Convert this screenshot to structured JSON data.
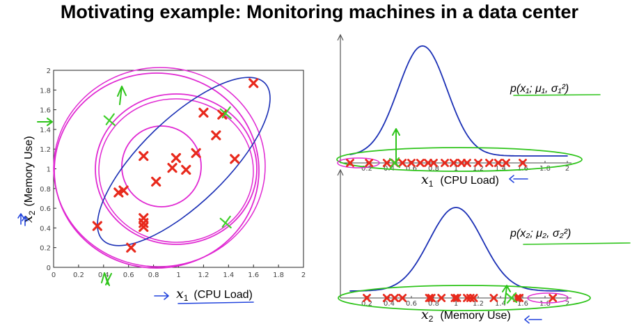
{
  "slide": {
    "title": "Motivating example: Monitoring machines in a data center"
  },
  "annotations": {
    "p1": "p(x₁; μ₁, σ₁²)",
    "p2": "p(x₂; μ₂, σ₂²)"
  },
  "colors": {
    "cross": "#e8291c",
    "anomaly": "#3fcf2a",
    "contour": "#e028d2",
    "curve": "#1a2fb5",
    "green_ink": "#2ec41a",
    "blue_ink": "#2244dd"
  },
  "chart_data": [
    {
      "type": "scatter",
      "xlabel_var": "x",
      "xlabel_sub": "1",
      "xlabel_text": "(CPU Load)",
      "ylabel_var": "x",
      "ylabel_sub": "2",
      "ylabel_text": "(Memory Use)",
      "xlim": [
        0,
        2
      ],
      "ylim": [
        0,
        2
      ],
      "xticks": [
        "0",
        "0.2",
        "0.4",
        "0.6",
        "0.8",
        "1",
        "1.2",
        "1.4",
        "1.6",
        "1.8",
        "2"
      ],
      "yticks": [
        "0",
        "0.2",
        "0.4",
        "0.6",
        "0.8",
        "1",
        "1.2",
        "1.4",
        "1.6",
        "1.8",
        "2"
      ],
      "points": [
        [
          0.35,
          0.42
        ],
        [
          0.52,
          0.76
        ],
        [
          0.56,
          0.78
        ],
        [
          0.62,
          0.2
        ],
        [
          0.72,
          0.5
        ],
        [
          0.72,
          0.45
        ],
        [
          0.72,
          0.41
        ],
        [
          0.82,
          0.87
        ],
        [
          0.72,
          1.13
        ],
        [
          0.95,
          1.01
        ],
        [
          0.98,
          1.11
        ],
        [
          1.06,
          0.99
        ],
        [
          1.14,
          1.16
        ],
        [
          1.2,
          1.57
        ],
        [
          1.3,
          1.34
        ],
        [
          1.35,
          1.55
        ],
        [
          1.45,
          1.1
        ],
        [
          1.6,
          1.87
        ]
      ],
      "anomalies": [
        [
          0.45,
          1.5
        ],
        [
          1.38,
          1.57
        ],
        [
          1.38,
          0.46
        ]
      ]
    },
    {
      "type": "line",
      "xlim": [
        0,
        2
      ],
      "xticks": [
        "0.2",
        "0.4",
        "0.6",
        "0.8",
        "1",
        "1.2",
        "1.4",
        "1.6",
        "1.8",
        "2"
      ],
      "xlabel_var": "x",
      "xlabel_sub": "1",
      "xlabel_text": "(CPU Load)",
      "density_mean": 0.7,
      "samples": [
        0.05,
        0.22,
        0.38,
        0.45,
        0.52,
        0.6,
        0.68,
        0.75,
        0.8,
        0.9,
        0.98,
        1.05,
        1.1,
        1.2,
        1.3,
        1.38,
        1.45,
        1.6
      ],
      "anomaly": 0.45
    },
    {
      "type": "line",
      "xlim": [
        0,
        2
      ],
      "xticks": [
        "0.2",
        "0.4",
        "0.6",
        "0.8",
        "1",
        "1.2",
        "1.4",
        "1.6",
        "1.8",
        "2"
      ],
      "xlabel_var": "x",
      "xlabel_sub": "2",
      "xlabel_text": "(Memory Use)",
      "density_mean": 1.0,
      "samples": [
        0.2,
        0.38,
        0.45,
        0.52,
        0.76,
        0.78,
        0.87,
        0.99,
        1.01,
        1.1,
        1.13,
        1.16,
        1.34,
        1.55,
        1.57,
        1.87
      ],
      "anomaly": 1.5
    }
  ]
}
